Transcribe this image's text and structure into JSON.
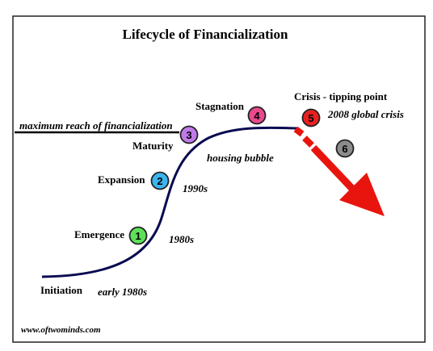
{
  "title": "Lifecycle of Financialization",
  "credit": "www.oftwominds.com",
  "reference_line_label": "maximum reach of financialization",
  "colors": {
    "curve": "#0a0a50",
    "arrow": "#e8150e",
    "frame": "#222222"
  },
  "stages": [
    {
      "number": "1",
      "label": "Emergence",
      "period": "1980s",
      "color": "#5ee05a"
    },
    {
      "number": "2",
      "label": "Expansion",
      "period": "1990s",
      "color": "#3cb4f0"
    },
    {
      "number": "3",
      "label": "Maturity",
      "period": "",
      "color": "#c07ae8"
    },
    {
      "number": "4",
      "label": "Stagnation",
      "period": "housing bubble",
      "color": "#e84a8c"
    },
    {
      "number": "5",
      "label": "Crisis - tipping point",
      "period": "2008 global crisis",
      "color": "#e82020"
    },
    {
      "number": "6",
      "label": "",
      "period": "",
      "color": "#8c8c8c"
    }
  ],
  "initiation": {
    "label": "Initiation",
    "period": "early 1980s"
  }
}
